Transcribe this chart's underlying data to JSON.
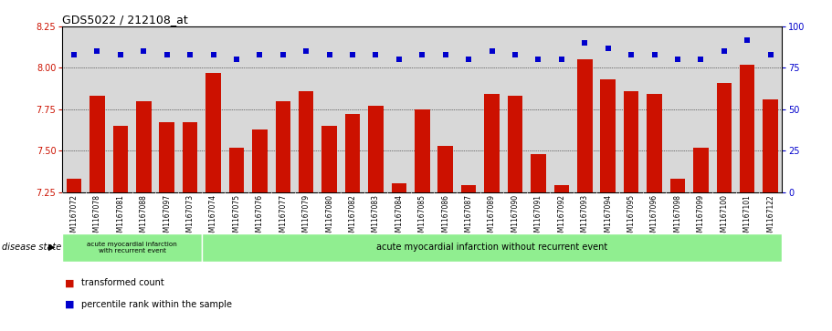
{
  "title": "GDS5022 / 212108_at",
  "samples": [
    "GSM1167072",
    "GSM1167078",
    "GSM1167081",
    "GSM1167088",
    "GSM1167097",
    "GSM1167073",
    "GSM1167074",
    "GSM1167075",
    "GSM1167076",
    "GSM1167077",
    "GSM1167079",
    "GSM1167080",
    "GSM1167082",
    "GSM1167083",
    "GSM1167084",
    "GSM1167085",
    "GSM1167086",
    "GSM1167087",
    "GSM1167089",
    "GSM1167090",
    "GSM1167091",
    "GSM1167092",
    "GSM1167093",
    "GSM1167094",
    "GSM1167095",
    "GSM1167096",
    "GSM1167098",
    "GSM1167099",
    "GSM1167100",
    "GSM1167101",
    "GSM1167122"
  ],
  "bar_values": [
    7.33,
    7.83,
    7.65,
    7.8,
    7.67,
    7.67,
    7.97,
    7.52,
    7.63,
    7.8,
    7.86,
    7.65,
    7.72,
    7.77,
    7.3,
    7.75,
    7.53,
    7.29,
    7.84,
    7.83,
    7.48,
    7.29,
    8.05,
    7.93,
    7.86,
    7.84,
    7.33,
    7.52,
    7.91,
    8.02,
    7.81
  ],
  "percentile_values": [
    83,
    85,
    83,
    85,
    83,
    83,
    83,
    80,
    83,
    83,
    85,
    83,
    83,
    83,
    80,
    83,
    83,
    80,
    85,
    83,
    80,
    80,
    90,
    87,
    83,
    83,
    80,
    80,
    85,
    92,
    83
  ],
  "ylim_left": [
    7.25,
    8.25
  ],
  "ylim_right": [
    0,
    100
  ],
  "yticks_left": [
    7.25,
    7.5,
    7.75,
    8.0,
    8.25
  ],
  "yticks_right": [
    0,
    25,
    50,
    75,
    100
  ],
  "bar_color": "#cc1100",
  "dot_color": "#0000cc",
  "group1_label": "acute myocardial infarction\nwith recurrent event",
  "group2_label": "acute myocardial infarction without recurrent event",
  "group1_count": 6,
  "disease_label": "disease state",
  "legend_bar_label": "transformed count",
  "legend_dot_label": "percentile rank within the sample",
  "plot_bg_color": "#d8d8d8",
  "group1_color": "#90ee90",
  "group2_color": "#90ee90",
  "fig_bg_color": "#ffffff"
}
